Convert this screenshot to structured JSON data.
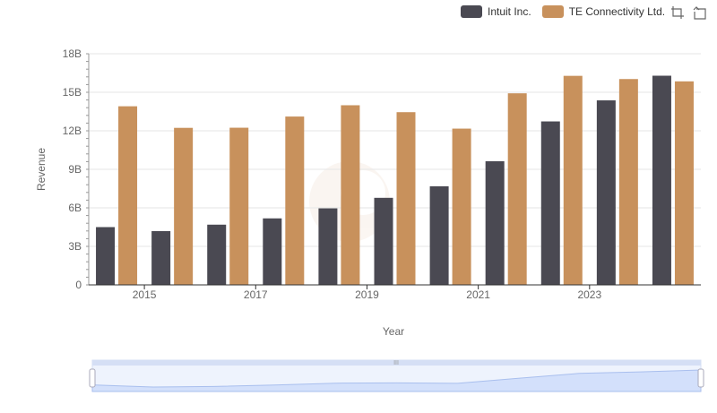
{
  "legend": {
    "items": [
      {
        "label": "Intuit Inc.",
        "color": "#4a4952"
      },
      {
        "label": "TE Connectivity Ltd.",
        "color": "#c8915c"
      }
    ]
  },
  "toolbar": {
    "icons": [
      "zoom-select-icon",
      "zoom-reset-icon"
    ]
  },
  "chart_data": {
    "type": "bar",
    "xlabel": "Year",
    "ylabel": "Revenue",
    "ylim": [
      0,
      18000000000
    ],
    "yticks": [
      "0",
      "3B",
      "6B",
      "9B",
      "12B",
      "15B",
      "18B"
    ],
    "xticks": [
      "2015",
      "2017",
      "2019",
      "2021",
      "2023"
    ],
    "categories": [
      "2014",
      "2015",
      "2016",
      "2017",
      "2018",
      "2019",
      "2020",
      "2021",
      "2022",
      "2023",
      "2024"
    ],
    "series": [
      {
        "name": "Intuit Inc.",
        "color": "#4a4952",
        "values": [
          4500000000,
          4190000000,
          4690000000,
          5180000000,
          5960000000,
          6780000000,
          7680000000,
          9630000000,
          12730000000,
          14370000000,
          16290000000
        ]
      },
      {
        "name": "TE Connectivity Ltd.",
        "color": "#c8915c",
        "values": [
          13910000000,
          12230000000,
          12240000000,
          13110000000,
          13990000000,
          13450000000,
          12170000000,
          14920000000,
          16280000000,
          16030000000,
          15850000000
        ]
      }
    ],
    "grid": true,
    "legend_position": "top-right"
  }
}
